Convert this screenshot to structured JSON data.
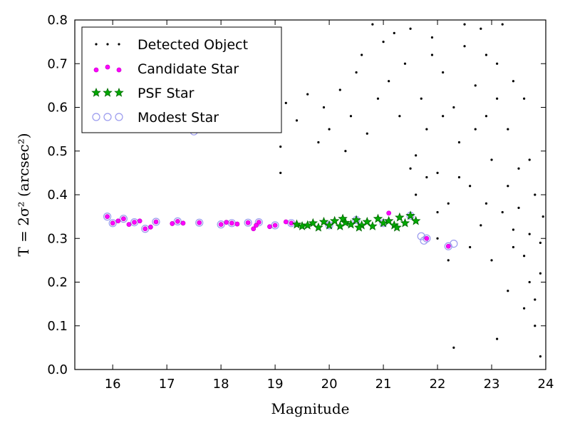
{
  "chart_data": {
    "type": "scatter",
    "xlabel": "Magnitude",
    "ylabel": "T = 2σ² (arcsec²)",
    "xlim": [
      15.3,
      24
    ],
    "ylim": [
      0.0,
      0.8
    ],
    "xticks": [
      "16",
      "17",
      "18",
      "19",
      "20",
      "21",
      "22",
      "23",
      "24"
    ],
    "yticks": [
      "0.0",
      "0.1",
      "0.2",
      "0.3",
      "0.4",
      "0.5",
      "0.6",
      "0.7",
      "0.8"
    ],
    "legend_position": "upper-left",
    "grid": false,
    "series": [
      {
        "name": "Detected Object",
        "marker": "dot",
        "color": "#000000",
        "points": [
          [
            19.1,
            0.45
          ],
          [
            19.2,
            0.61
          ],
          [
            19.1,
            0.51
          ],
          [
            19.4,
            0.57
          ],
          [
            19.6,
            0.63
          ],
          [
            19.9,
            0.6
          ],
          [
            20.0,
            0.55
          ],
          [
            20.2,
            0.64
          ],
          [
            20.4,
            0.58
          ],
          [
            20.5,
            0.68
          ],
          [
            20.6,
            0.72
          ],
          [
            20.7,
            0.54
          ],
          [
            20.9,
            0.62
          ],
          [
            21.0,
            0.75
          ],
          [
            21.1,
            0.66
          ],
          [
            21.3,
            0.58
          ],
          [
            21.4,
            0.7
          ],
          [
            21.5,
            0.78
          ],
          [
            21.6,
            0.49
          ],
          [
            21.7,
            0.62
          ],
          [
            21.8,
            0.55
          ],
          [
            21.9,
            0.72
          ],
          [
            22.0,
            0.45
          ],
          [
            22.1,
            0.68
          ],
          [
            22.2,
            0.38
          ],
          [
            22.3,
            0.6
          ],
          [
            22.4,
            0.52
          ],
          [
            22.5,
            0.74
          ],
          [
            22.6,
            0.42
          ],
          [
            22.7,
            0.65
          ],
          [
            22.8,
            0.33
          ],
          [
            22.9,
            0.58
          ],
          [
            23.0,
            0.48
          ],
          [
            23.1,
            0.7
          ],
          [
            23.2,
            0.36
          ],
          [
            23.3,
            0.55
          ],
          [
            23.4,
            0.28
          ],
          [
            23.5,
            0.46
          ],
          [
            23.6,
            0.62
          ],
          [
            23.7,
            0.31
          ],
          [
            23.8,
            0.4
          ],
          [
            23.9,
            0.22
          ],
          [
            23.95,
            0.35
          ],
          [
            22.3,
            0.05
          ],
          [
            23.1,
            0.07
          ],
          [
            23.6,
            0.14
          ],
          [
            23.9,
            0.03
          ],
          [
            23.8,
            0.1
          ],
          [
            23.3,
            0.18
          ],
          [
            23.7,
            0.2
          ],
          [
            22.8,
            0.78
          ],
          [
            23.2,
            0.79
          ],
          [
            22.5,
            0.79
          ],
          [
            21.9,
            0.76
          ],
          [
            21.2,
            0.77
          ],
          [
            20.8,
            0.79
          ],
          [
            20.3,
            0.5
          ],
          [
            19.8,
            0.52
          ],
          [
            21.5,
            0.46
          ],
          [
            22.0,
            0.3
          ],
          [
            22.2,
            0.25
          ],
          [
            22.6,
            0.28
          ],
          [
            23.0,
            0.25
          ],
          [
            23.4,
            0.32
          ],
          [
            23.6,
            0.26
          ],
          [
            23.8,
            0.16
          ],
          [
            22.9,
            0.38
          ],
          [
            22.4,
            0.44
          ],
          [
            22.7,
            0.55
          ],
          [
            23.3,
            0.42
          ],
          [
            23.5,
            0.37
          ],
          [
            23.9,
            0.29
          ],
          [
            22.1,
            0.58
          ],
          [
            21.8,
            0.44
          ],
          [
            21.6,
            0.4
          ],
          [
            22.0,
            0.36
          ],
          [
            23.1,
            0.62
          ],
          [
            23.7,
            0.48
          ],
          [
            22.9,
            0.72
          ],
          [
            23.4,
            0.66
          ]
        ]
      },
      {
        "name": "Candidate Star",
        "marker": "circle-small",
        "color": "#ff00ff",
        "points": [
          [
            15.9,
            0.35
          ],
          [
            16.0,
            0.335
          ],
          [
            16.1,
            0.34
          ],
          [
            16.2,
            0.345
          ],
          [
            16.3,
            0.332
          ],
          [
            16.4,
            0.337
          ],
          [
            16.5,
            0.34
          ],
          [
            16.6,
            0.322
          ],
          [
            16.7,
            0.326
          ],
          [
            16.8,
            0.338
          ],
          [
            17.1,
            0.334
          ],
          [
            17.2,
            0.339
          ],
          [
            17.3,
            0.335
          ],
          [
            17.6,
            0.336
          ],
          [
            18.0,
            0.332
          ],
          [
            18.1,
            0.337
          ],
          [
            18.2,
            0.335
          ],
          [
            18.3,
            0.333
          ],
          [
            18.5,
            0.336
          ],
          [
            18.6,
            0.322
          ],
          [
            18.65,
            0.33
          ],
          [
            18.7,
            0.337
          ],
          [
            18.9,
            0.327
          ],
          [
            19.0,
            0.33
          ],
          [
            19.2,
            0.338
          ],
          [
            19.3,
            0.335
          ],
          [
            21.1,
            0.358
          ],
          [
            21.8,
            0.3
          ],
          [
            22.2,
            0.282
          ]
        ]
      },
      {
        "name": "PSF Star",
        "marker": "star",
        "color": "#00aa00",
        "points": [
          [
            19.4,
            0.332
          ],
          [
            19.5,
            0.328
          ],
          [
            19.6,
            0.33
          ],
          [
            19.7,
            0.335
          ],
          [
            19.8,
            0.325
          ],
          [
            19.9,
            0.338
          ],
          [
            20.0,
            0.33
          ],
          [
            20.1,
            0.34
          ],
          [
            20.2,
            0.328
          ],
          [
            20.3,
            0.336
          ],
          [
            20.4,
            0.332
          ],
          [
            20.5,
            0.342
          ],
          [
            20.6,
            0.33
          ],
          [
            20.7,
            0.338
          ],
          [
            20.8,
            0.328
          ],
          [
            20.9,
            0.345
          ],
          [
            21.0,
            0.335
          ],
          [
            21.1,
            0.34
          ],
          [
            21.2,
            0.33
          ],
          [
            21.3,
            0.348
          ],
          [
            21.4,
            0.335
          ],
          [
            21.5,
            0.352
          ],
          [
            21.6,
            0.34
          ],
          [
            20.25,
            0.345
          ],
          [
            20.55,
            0.325
          ],
          [
            21.25,
            0.325
          ]
        ]
      },
      {
        "name": "Modest Star",
        "marker": "circle-open",
        "color": "#9999ee",
        "points": [
          [
            15.9,
            0.35
          ],
          [
            16.0,
            0.335
          ],
          [
            16.2,
            0.345
          ],
          [
            16.4,
            0.337
          ],
          [
            16.6,
            0.322
          ],
          [
            16.8,
            0.338
          ],
          [
            17.2,
            0.339
          ],
          [
            17.6,
            0.336
          ],
          [
            18.0,
            0.332
          ],
          [
            18.2,
            0.335
          ],
          [
            18.5,
            0.336
          ],
          [
            18.7,
            0.337
          ],
          [
            19.0,
            0.33
          ],
          [
            19.3,
            0.335
          ],
          [
            20.0,
            0.33
          ],
          [
            20.5,
            0.342
          ],
          [
            21.0,
            0.335
          ],
          [
            21.5,
            0.352
          ],
          [
            21.7,
            0.305
          ],
          [
            21.75,
            0.295
          ],
          [
            21.8,
            0.3
          ],
          [
            22.2,
            0.282
          ],
          [
            22.3,
            0.288
          ],
          [
            17.5,
            0.545
          ]
        ]
      }
    ]
  }
}
